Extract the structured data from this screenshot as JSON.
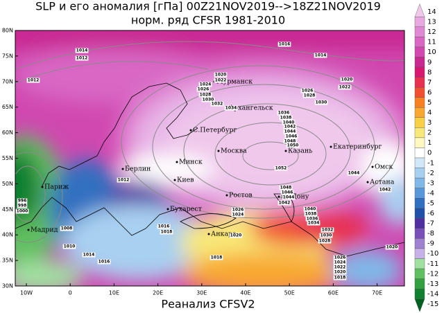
{
  "header": {
    "title": "SLP и его аномалия [гПа] 00Z21NOV2019-->18Z21NOV2019",
    "subtitle": "норм. ряд CFSR 1981-2010"
  },
  "footer": "Реанализ CFSV2",
  "lat_labels": [
    "80N",
    "75N",
    "70N",
    "65N",
    "60N",
    "55N",
    "50N",
    "45N",
    "40N",
    "35N",
    "30N"
  ],
  "lon_labels": [
    "10W",
    "0",
    "10E",
    "20E",
    "30E",
    "40E",
    "50E",
    "60E",
    "70E"
  ],
  "legend": [
    {
      "value": 14,
      "color": "#f0c8ec"
    },
    {
      "value": 13,
      "color": "#e8a8e0"
    },
    {
      "value": 12,
      "color": "#e088d4"
    },
    {
      "value": 11,
      "color": "#d868c4"
    },
    {
      "value": 10,
      "color": "#d048b0"
    },
    {
      "value": 9,
      "color": "#c82890"
    },
    {
      "value": 8,
      "color": "#d81870"
    },
    {
      "value": 7,
      "color": "#e83050"
    },
    {
      "value": 6,
      "color": "#f05030"
    },
    {
      "value": 5,
      "color": "#f88020"
    },
    {
      "value": 4,
      "color": "#f8a830"
    },
    {
      "value": 3,
      "color": "#f8d048"
    },
    {
      "value": 2,
      "color": "#f8e878"
    },
    {
      "value": 1,
      "color": "#fff8c0"
    },
    {
      "value": 0,
      "color": "#ffffff"
    },
    {
      "value": -1,
      "color": "#d0e8f8"
    },
    {
      "value": -2,
      "color": "#a8d0f0"
    },
    {
      "value": -3,
      "color": "#80b8e8"
    },
    {
      "value": -4,
      "color": "#5898d8"
    },
    {
      "value": -5,
      "color": "#3070c0"
    },
    {
      "value": -6,
      "color": "#2050a8"
    },
    {
      "value": -7,
      "color": "#5030a0"
    },
    {
      "value": -8,
      "color": "#7850b8"
    },
    {
      "value": -9,
      "color": "#a080d0"
    },
    {
      "value": -10,
      "color": "#c8b0e8"
    },
    {
      "value": -11,
      "color": "#a0e0a0"
    },
    {
      "value": -12,
      "color": "#60c060"
    },
    {
      "value": -13,
      "color": "#30a040"
    },
    {
      "value": -14,
      "color": "#108030"
    },
    {
      "value": -15,
      "color": "#006020"
    }
  ],
  "cities": [
    "Мурманск",
    "Архангельск",
    "С.Петербург",
    "Москва",
    "Казань",
    "Екатеринбург",
    "Минск",
    "Киев",
    "Берлин",
    "Париж",
    "Ростов",
    "на Дону",
    "Омск",
    "Астана",
    "Бухарест",
    "Анкара",
    "Мадрид"
  ],
  "isobar_labels": [
    1014,
    1012,
    1012,
    1016,
    1014,
    1020,
    1022,
    1024,
    1026,
    1028,
    1030,
    1032,
    1034,
    1020,
    1022,
    1026,
    1028,
    1030,
    1036,
    1038,
    1040,
    1042,
    1044,
    1046,
    1048,
    1050,
    1052,
    1044,
    1042,
    1048,
    1046,
    1044,
    1042,
    1040,
    1038,
    1036,
    1034,
    1032,
    1030,
    1028,
    1026,
    1024,
    1020,
    1012,
    996,
    998,
    1000,
    1008,
    1010,
    1014,
    1016,
    1016,
    1018,
    1018,
    1026,
    1024,
    1022,
    1020,
    1018,
    1020
  ]
}
